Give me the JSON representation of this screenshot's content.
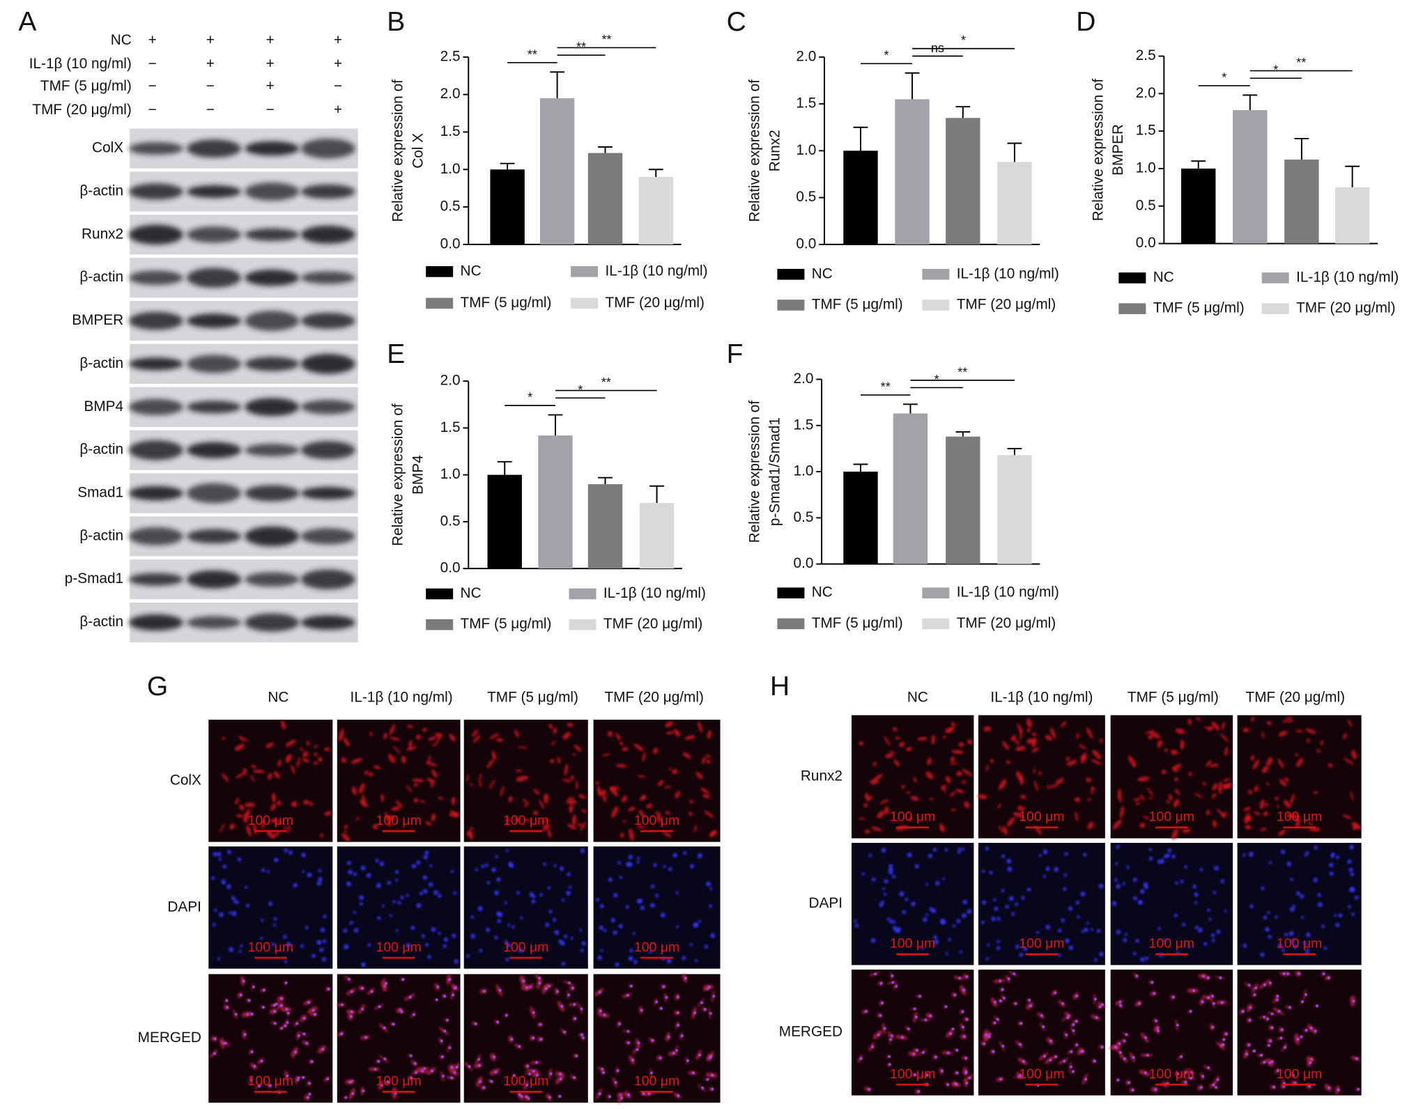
{
  "blot": {
    "panel": "A",
    "conditions": [
      {
        "label": "NC",
        "signs": [
          "+",
          "+",
          "+",
          "+"
        ]
      },
      {
        "label": "IL-1β (10 ng/ml)",
        "signs": [
          "−",
          "+",
          "+",
          "+"
        ]
      },
      {
        "label": "TMF (5 μg/ml)",
        "signs": [
          "−",
          "−",
          "+",
          "−"
        ]
      },
      {
        "label": "TMF (20 μg/ml)",
        "signs": [
          "−",
          "−",
          "−",
          "+"
        ]
      }
    ],
    "bands": [
      "ColX",
      "β-actin",
      "Runx2",
      "β-actin",
      "BMPER",
      "β-actin",
      "BMP4",
      "β-actin",
      "Smad1",
      "β-actin",
      "p-Smad1",
      "β-actin"
    ]
  },
  "chart_data": [
    {
      "type": "bar",
      "panel": "B",
      "y_label": [
        "Relative expression of",
        "Col X"
      ],
      "ylim": [
        0,
        2.5
      ],
      "yticks": [
        {
          "value": 0,
          "label": "0.0"
        },
        0.5,
        {
          "value": 1,
          "label": "1.0"
        },
        1.5,
        {
          "value": 2,
          "label": "2.0"
        },
        2.5
      ],
      "series": [
        {
          "name": "NC",
          "color": "#000000",
          "values": [
            1.0
          ],
          "errors": [
            0.08
          ]
        },
        {
          "name": "IL-1β (10 ng/ml)",
          "color": "#a2a2a8",
          "values": [
            1.95
          ],
          "errors": [
            0.35
          ]
        },
        {
          "name": "TMF (5 μg/ml)",
          "color": "#7b7b7b",
          "values": [
            1.22
          ],
          "errors": [
            0.08
          ]
        },
        {
          "name": "TMF (20 μg/ml)",
          "color": "#d9d9d9",
          "values": [
            0.9
          ],
          "errors": [
            0.1
          ]
        }
      ],
      "annotations": [
        {
          "text": "**",
          "between": [
            0,
            1
          ]
        },
        {
          "text": "**",
          "between": [
            1,
            2
          ]
        },
        {
          "text": "**",
          "between": [
            1,
            3
          ]
        }
      ]
    },
    {
      "type": "bar",
      "panel": "C",
      "y_label": [
        "Relative expression of",
        "Runx2"
      ],
      "ylim": [
        0,
        2
      ],
      "yticks": [
        {
          "value": 0,
          "label": "0.0"
        },
        0.5,
        {
          "value": 1,
          "label": "1.0"
        },
        1.5,
        {
          "value": 2,
          "label": "2.0"
        }
      ],
      "series": [
        {
          "name": "NC",
          "color": "#000000",
          "values": [
            1.0
          ],
          "errors": [
            0.25
          ]
        },
        {
          "name": "IL-1β (10 ng/ml)",
          "color": "#a2a2a8",
          "values": [
            1.55
          ],
          "errors": [
            0.28
          ]
        },
        {
          "name": "TMF (5 μg/ml)",
          "color": "#7b7b7b",
          "values": [
            1.35
          ],
          "errors": [
            0.12
          ]
        },
        {
          "name": "TMF (20 μg/ml)",
          "color": "#d9d9d9",
          "values": [
            0.88
          ],
          "errors": [
            0.2
          ]
        }
      ],
      "annotations": [
        {
          "text": "*",
          "between": [
            0,
            1
          ]
        },
        {
          "text": "ns",
          "between": [
            1,
            2
          ]
        },
        {
          "text": "*",
          "between": [
            1,
            3
          ]
        }
      ]
    },
    {
      "type": "bar",
      "panel": "D",
      "y_label": [
        "Relative expression of",
        "BMPER"
      ],
      "ylim": [
        0,
        2.5
      ],
      "yticks": [
        {
          "value": 0,
          "label": "0.0"
        },
        0.5,
        {
          "value": 1,
          "label": "1.0"
        },
        1.5,
        {
          "value": 2,
          "label": "2.0"
        },
        2.5
      ],
      "series": [
        {
          "name": "NC",
          "color": "#000000",
          "values": [
            1.0
          ],
          "errors": [
            0.1
          ]
        },
        {
          "name": "IL-1β (10 ng/ml)",
          "color": "#a2a2a8",
          "values": [
            1.78
          ],
          "errors": [
            0.2
          ]
        },
        {
          "name": "TMF (5 μg/ml)",
          "color": "#7b7b7b",
          "values": [
            1.12
          ],
          "errors": [
            0.28
          ]
        },
        {
          "name": "TMF (20 μg/ml)",
          "color": "#d9d9d9",
          "values": [
            0.75
          ],
          "errors": [
            0.28
          ]
        }
      ],
      "annotations": [
        {
          "text": "*",
          "between": [
            0,
            1
          ]
        },
        {
          "text": "*",
          "between": [
            1,
            2
          ]
        },
        {
          "text": "**",
          "between": [
            1,
            3
          ]
        }
      ]
    },
    {
      "type": "bar",
      "panel": "E",
      "y_label": [
        "Relative expression of",
        "BMP4"
      ],
      "ylim": [
        0,
        2
      ],
      "yticks": [
        {
          "value": 0,
          "label": "0.0"
        },
        0.5,
        {
          "value": 1,
          "label": "1.0"
        },
        1.5,
        {
          "value": 2,
          "label": "2.0"
        }
      ],
      "series": [
        {
          "name": "NC",
          "color": "#000000",
          "values": [
            1.0
          ],
          "errors": [
            0.14
          ]
        },
        {
          "name": "IL-1β (10 ng/ml)",
          "color": "#a2a2a8",
          "values": [
            1.42
          ],
          "errors": [
            0.22
          ]
        },
        {
          "name": "TMF (5 μg/ml)",
          "color": "#7b7b7b",
          "values": [
            0.9
          ],
          "errors": [
            0.07
          ]
        },
        {
          "name": "TMF (20 μg/ml)",
          "color": "#d9d9d9",
          "values": [
            0.7
          ],
          "errors": [
            0.18
          ]
        }
      ],
      "annotations": [
        {
          "text": "*",
          "between": [
            0,
            1
          ]
        },
        {
          "text": "*",
          "between": [
            1,
            2
          ]
        },
        {
          "text": "**",
          "between": [
            1,
            3
          ]
        }
      ]
    },
    {
      "type": "bar",
      "panel": "F",
      "y_label": [
        "Relative expression of",
        "p-Smad1/Smad1"
      ],
      "ylim": [
        0,
        2
      ],
      "yticks": [
        {
          "value": 0,
          "label": "0.0"
        },
        0.5,
        {
          "value": 1,
          "label": "1.0"
        },
        1.5,
        {
          "value": 2,
          "label": "2.0"
        }
      ],
      "series": [
        {
          "name": "NC",
          "color": "#000000",
          "values": [
            1.0
          ],
          "errors": [
            0.08
          ]
        },
        {
          "name": "IL-1β (10 ng/ml)",
          "color": "#a2a2a8",
          "values": [
            1.63
          ],
          "errors": [
            0.1
          ]
        },
        {
          "name": "TMF (5 μg/ml)",
          "color": "#7b7b7b",
          "values": [
            1.38
          ],
          "errors": [
            0.05
          ]
        },
        {
          "name": "TMF (20 μg/ml)",
          "color": "#d9d9d9",
          "values": [
            1.18
          ],
          "errors": [
            0.07
          ]
        }
      ],
      "annotations": [
        {
          "text": "**",
          "between": [
            0,
            1
          ]
        },
        {
          "text": "*",
          "between": [
            1,
            2
          ]
        },
        {
          "text": "**",
          "between": [
            1,
            3
          ]
        }
      ]
    }
  ],
  "micrographs": [
    {
      "panel": "G",
      "columns": [
        "NC",
        "IL-1β (10 ng/ml)",
        "TMF (5 μg/ml)",
        "TMF (20 μg/ml)"
      ],
      "rows": [
        "ColX",
        "DAPI",
        "MERGED"
      ],
      "scale_bar": "100 μm"
    },
    {
      "panel": "H",
      "columns": [
        "NC",
        "IL-1β (10 ng/ml)",
        "TMF (5 μg/ml)",
        "TMF (20 μg/ml)"
      ],
      "rows": [
        "Runx2",
        "DAPI",
        "MERGED"
      ],
      "scale_bar": "100 μm"
    }
  ]
}
